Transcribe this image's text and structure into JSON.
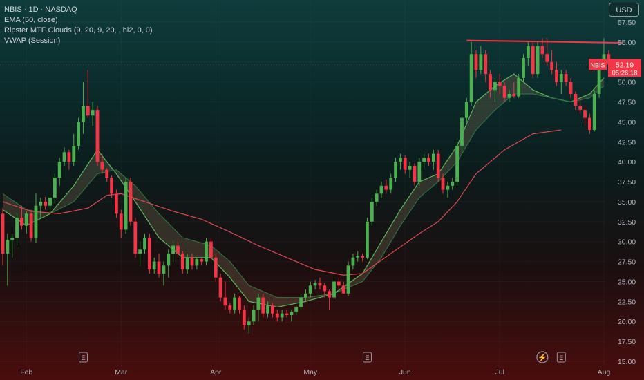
{
  "legend": {
    "symbol": "NBIS · 1D · NASDAQ",
    "ema": "EMA (50, close)",
    "ripster": "Ripster MTF Clouds (9, 20, 9, 20, , hl2, 0, 0)",
    "vwap": "VWAP (Session)"
  },
  "currency_button": "USD",
  "price_label": {
    "ticker": "NBIS",
    "price": "52.19",
    "countdown": "05:26:18"
  },
  "colors": {
    "up": "#4caf50",
    "down": "#f23645",
    "ema": "#e04850",
    "cloud_line": "#5cb85c",
    "resistance": "#f23645"
  },
  "event_markers": [
    "E",
    "E",
    "⚡",
    "E"
  ],
  "chart_data": {
    "type": "candlestick",
    "title": "NBIS · 1D · NASDAQ",
    "ylim": [
      15,
      60
    ],
    "y_ticks": [
      15,
      17.5,
      20,
      22.5,
      25,
      27.5,
      30,
      32.5,
      35,
      37.5,
      40,
      42.5,
      45,
      47.5,
      50,
      52.5,
      55,
      57.5
    ],
    "y_tick_labels": [
      "15.00",
      "17.50",
      "20.00",
      "22.50",
      "25.00",
      "27.50",
      "30.00",
      "32.50",
      "35.00",
      "37.50",
      "40.00",
      "42.50",
      "45.00",
      "47.50",
      "50.00",
      "52.50",
      "55.00",
      "57.50"
    ],
    "x_labels": [
      {
        "label": "Feb",
        "index": 5
      },
      {
        "label": "Mar",
        "index": 25
      },
      {
        "label": "Apr",
        "index": 45
      },
      {
        "label": "May",
        "index": 65
      },
      {
        "label": "Jun",
        "index": 85
      },
      {
        "label": "Jul",
        "index": 105
      },
      {
        "label": "Aug",
        "index": 127
      }
    ],
    "candles": [
      [
        33.5,
        34.2,
        27.0,
        28.5
      ],
      [
        28.5,
        31.0,
        24.5,
        30.2
      ],
      [
        30.2,
        31.0,
        28.0,
        30.5
      ],
      [
        30.5,
        33.5,
        29.5,
        33.0
      ],
      [
        33.0,
        34.5,
        31.5,
        32.0
      ],
      [
        32.0,
        33.8,
        31.0,
        33.5
      ],
      [
        33.5,
        34.0,
        30.0,
        30.5
      ],
      [
        30.5,
        36.0,
        29.8,
        34.5
      ],
      [
        34.5,
        35.5,
        33.0,
        35.0
      ],
      [
        35.0,
        35.6,
        34.0,
        34.5
      ],
      [
        34.5,
        36.0,
        33.5,
        35.5
      ],
      [
        35.5,
        38.5,
        34.8,
        38.0
      ],
      [
        38.0,
        40.5,
        37.0,
        40.0
      ],
      [
        40.0,
        41.8,
        39.5,
        41.2
      ],
      [
        41.2,
        41.5,
        39.0,
        40.0
      ],
      [
        40.0,
        43.5,
        39.5,
        42.0
      ],
      [
        42.0,
        45.5,
        41.5,
        45.0
      ],
      [
        45.0,
        50.0,
        43.5,
        47.0
      ],
      [
        47.0,
        51.5,
        45.5,
        45.8
      ],
      [
        45.8,
        47.5,
        44.5,
        46.5
      ],
      [
        46.5,
        47.0,
        39.5,
        40.0
      ],
      [
        40.0,
        41.0,
        38.5,
        39.0
      ],
      [
        39.0,
        39.2,
        37.5,
        38.0
      ],
      [
        38.0,
        38.3,
        35.5,
        36.0
      ],
      [
        36.0,
        36.5,
        33.0,
        33.5
      ],
      [
        33.5,
        34.0,
        30.5,
        31.5
      ],
      [
        31.5,
        38.0,
        31.0,
        37.5
      ],
      [
        37.5,
        38.0,
        32.0,
        32.5
      ],
      [
        32.5,
        33.0,
        28.0,
        28.5
      ],
      [
        28.5,
        30.0,
        27.0,
        29.0
      ],
      [
        29.0,
        31.0,
        28.5,
        30.5
      ],
      [
        30.5,
        31.0,
        26.0,
        26.5
      ],
      [
        26.5,
        28.0,
        26.0,
        27.5
      ],
      [
        27.5,
        28.5,
        25.5,
        26.0
      ],
      [
        26.0,
        27.5,
        24.5,
        27.0
      ],
      [
        27.0,
        29.0,
        25.5,
        28.5
      ],
      [
        28.5,
        30.0,
        27.5,
        29.5
      ],
      [
        29.5,
        30.0,
        28.0,
        28.5
      ],
      [
        28.5,
        28.8,
        26.0,
        26.5
      ],
      [
        26.5,
        28.5,
        26.0,
        28.0
      ],
      [
        28.0,
        28.5,
        26.5,
        27.0
      ],
      [
        27.0,
        28.0,
        26.5,
        27.8
      ],
      [
        27.8,
        28.0,
        27.0,
        27.5
      ],
      [
        27.5,
        30.5,
        27.0,
        30.0
      ],
      [
        30.0,
        30.5,
        27.8,
        28.0
      ],
      [
        28.0,
        28.5,
        25.0,
        25.5
      ],
      [
        25.5,
        26.0,
        22.5,
        23.0
      ],
      [
        23.0,
        25.0,
        21.5,
        22.0
      ],
      [
        22.0,
        22.3,
        21.0,
        21.5
      ],
      [
        21.5,
        23.5,
        21.0,
        23.0
      ],
      [
        23.0,
        23.2,
        21.0,
        21.5
      ],
      [
        21.5,
        22.0,
        19.0,
        19.5
      ],
      [
        19.5,
        20.5,
        18.5,
        20.0
      ],
      [
        20.0,
        22.0,
        19.5,
        21.5
      ],
      [
        21.5,
        23.5,
        20.0,
        23.0
      ],
      [
        23.0,
        23.5,
        20.5,
        21.0
      ],
      [
        21.0,
        22.5,
        20.5,
        22.0
      ],
      [
        22.0,
        22.3,
        20.5,
        21.0
      ],
      [
        21.0,
        21.5,
        20.0,
        20.5
      ],
      [
        20.5,
        21.5,
        20.0,
        21.0
      ],
      [
        21.0,
        21.5,
        20.5,
        20.8
      ],
      [
        20.8,
        21.5,
        20.0,
        21.2
      ],
      [
        21.2,
        22.0,
        20.8,
        21.8
      ],
      [
        21.8,
        23.5,
        21.5,
        23.0
      ],
      [
        23.0,
        24.0,
        22.5,
        23.5
      ],
      [
        23.5,
        25.0,
        23.0,
        24.5
      ],
      [
        24.5,
        25.2,
        24.0,
        24.8
      ],
      [
        24.8,
        25.5,
        24.0,
        24.5
      ],
      [
        24.5,
        24.8,
        23.0,
        23.8
      ],
      [
        23.8,
        24.0,
        21.5,
        23.0
      ],
      [
        23.0,
        25.5,
        22.8,
        25.0
      ],
      [
        25.0,
        25.5,
        24.0,
        24.5
      ],
      [
        24.5,
        25.0,
        23.5,
        23.5
      ],
      [
        23.5,
        27.5,
        23.2,
        27.0
      ],
      [
        27.0,
        28.5,
        26.5,
        28.0
      ],
      [
        28.0,
        28.8,
        27.5,
        28.2
      ],
      [
        28.2,
        28.5,
        27.5,
        28.0
      ],
      [
        28.0,
        33.0,
        27.8,
        32.5
      ],
      [
        32.5,
        35.5,
        32.0,
        35.0
      ],
      [
        35.0,
        36.5,
        34.5,
        36.0
      ],
      [
        36.0,
        37.5,
        35.5,
        37.0
      ],
      [
        37.0,
        37.8,
        36.0,
        36.5
      ],
      [
        36.5,
        38.5,
        36.0,
        38.0
      ],
      [
        38.0,
        40.5,
        37.5,
        40.0
      ],
      [
        40.0,
        41.0,
        39.0,
        40.5
      ],
      [
        40.5,
        40.8,
        38.5,
        39.0
      ],
      [
        39.0,
        40.0,
        38.0,
        39.5
      ],
      [
        39.5,
        39.8,
        37.0,
        37.5
      ],
      [
        37.5,
        40.5,
        37.0,
        40.0
      ],
      [
        40.0,
        41.0,
        39.0,
        40.5
      ],
      [
        40.5,
        41.0,
        39.5,
        40.0
      ],
      [
        40.0,
        41.5,
        39.0,
        41.0
      ],
      [
        41.0,
        41.5,
        37.5,
        38.0
      ],
      [
        38.0,
        38.5,
        36.0,
        36.5
      ],
      [
        36.5,
        37.5,
        35.5,
        37.0
      ],
      [
        37.0,
        38.0,
        36.5,
        37.5
      ],
      [
        37.5,
        42.5,
        37.0,
        42.0
      ],
      [
        42.0,
        46.0,
        41.5,
        45.5
      ],
      [
        45.5,
        48.0,
        45.0,
        47.5
      ],
      [
        47.5,
        55.0,
        47.0,
        53.5
      ],
      [
        53.5,
        54.0,
        50.5,
        51.5
      ],
      [
        51.5,
        54.5,
        51.0,
        53.5
      ],
      [
        53.5,
        54.0,
        50.0,
        51.0
      ],
      [
        51.0,
        51.5,
        48.0,
        49.0
      ],
      [
        49.0,
        50.5,
        47.5,
        50.0
      ],
      [
        50.0,
        51.0,
        48.5,
        49.5
      ],
      [
        49.5,
        50.0,
        47.5,
        48.0
      ],
      [
        48.0,
        49.0,
        47.5,
        48.5
      ],
      [
        48.5,
        50.0,
        48.0,
        48.2
      ],
      [
        48.2,
        51.0,
        48.0,
        50.5
      ],
      [
        50.5,
        53.5,
        50.0,
        53.0
      ],
      [
        53.0,
        55.0,
        52.0,
        54.5
      ],
      [
        54.5,
        55.0,
        50.5,
        51.0
      ],
      [
        51.0,
        55.0,
        50.5,
        54.5
      ],
      [
        54.5,
        55.5,
        53.0,
        53.5
      ],
      [
        53.5,
        55.5,
        52.0,
        52.5
      ],
      [
        52.5,
        54.0,
        51.0,
        51.5
      ],
      [
        51.5,
        52.5,
        49.5,
        50.0
      ],
      [
        50.0,
        51.5,
        48.5,
        51.0
      ],
      [
        51.0,
        51.5,
        49.5,
        50.0
      ],
      [
        50.0,
        50.5,
        48.0,
        48.5
      ],
      [
        48.5,
        48.8,
        46.5,
        47.0
      ],
      [
        47.0,
        48.0,
        46.0,
        46.5
      ],
      [
        46.5,
        47.0,
        44.5,
        45.5
      ],
      [
        45.5,
        46.0,
        43.5,
        44.0
      ],
      [
        44.0,
        49.0,
        43.8,
        48.5
      ],
      [
        48.5,
        52.5,
        48.0,
        52.0
      ],
      [
        52.0,
        55.5,
        51.5,
        53.5
      ],
      [
        53.5,
        54.0,
        51.5,
        52.19
      ]
    ],
    "ema_50": [
      [
        0,
        35.0
      ],
      [
        6,
        33.8
      ],
      [
        12,
        33.5
      ],
      [
        18,
        34.2
      ],
      [
        22,
        35.8
      ],
      [
        25,
        36.0
      ],
      [
        30,
        35.0
      ],
      [
        36,
        33.8
      ],
      [
        42,
        32.8
      ],
      [
        48,
        31.2
      ],
      [
        54,
        29.5
      ],
      [
        60,
        28.0
      ],
      [
        66,
        26.5
      ],
      [
        72,
        25.8
      ],
      [
        76,
        26.0
      ],
      [
        82,
        28.5
      ],
      [
        88,
        31.0
      ],
      [
        92,
        32.5
      ],
      [
        96,
        35.0
      ],
      [
        100,
        38.5
      ],
      [
        106,
        41.5
      ],
      [
        112,
        43.5
      ],
      [
        118,
        44.0
      ]
    ],
    "ripster_cloud_fast": [
      [
        0,
        34.0
      ],
      [
        5,
        32.0
      ],
      [
        10,
        33.5
      ],
      [
        15,
        37.0
      ],
      [
        20,
        41.5
      ],
      [
        24,
        38.5
      ],
      [
        28,
        35.0
      ],
      [
        33,
        30.5
      ],
      [
        38,
        28.0
      ],
      [
        44,
        28.0
      ],
      [
        48,
        25.5
      ],
      [
        52,
        22.5
      ],
      [
        58,
        21.8
      ],
      [
        64,
        22.5
      ],
      [
        70,
        23.5
      ],
      [
        76,
        26.0
      ],
      [
        80,
        30.0
      ],
      [
        84,
        34.0
      ],
      [
        88,
        37.5
      ],
      [
        92,
        38.5
      ],
      [
        96,
        42.0
      ],
      [
        100,
        47.5
      ],
      [
        104,
        49.5
      ],
      [
        108,
        51.0
      ],
      [
        112,
        49.0
      ],
      [
        116,
        48.0
      ],
      [
        120,
        47.5
      ],
      [
        124,
        48.5
      ],
      [
        127,
        50.5
      ]
    ],
    "ripster_cloud_slow": [
      [
        0,
        36.0
      ],
      [
        5,
        34.0
      ],
      [
        10,
        33.5
      ],
      [
        15,
        35.0
      ],
      [
        20,
        38.5
      ],
      [
        24,
        39.0
      ],
      [
        28,
        37.0
      ],
      [
        33,
        33.5
      ],
      [
        38,
        30.5
      ],
      [
        44,
        29.5
      ],
      [
        48,
        27.5
      ],
      [
        52,
        24.5
      ],
      [
        58,
        23.0
      ],
      [
        64,
        23.0
      ],
      [
        70,
        23.5
      ],
      [
        76,
        25.0
      ],
      [
        80,
        28.0
      ],
      [
        84,
        32.0
      ],
      [
        88,
        35.5
      ],
      [
        92,
        37.5
      ],
      [
        96,
        40.0
      ],
      [
        100,
        44.0
      ],
      [
        104,
        46.5
      ],
      [
        108,
        48.5
      ],
      [
        112,
        48.5
      ],
      [
        116,
        48.0
      ],
      [
        120,
        47.5
      ],
      [
        124,
        48.0
      ],
      [
        127,
        49.5
      ]
    ],
    "resistance_line": {
      "y_start": 55.2,
      "y_end": 54.9,
      "x_start": 98,
      "x_end": 131
    }
  }
}
